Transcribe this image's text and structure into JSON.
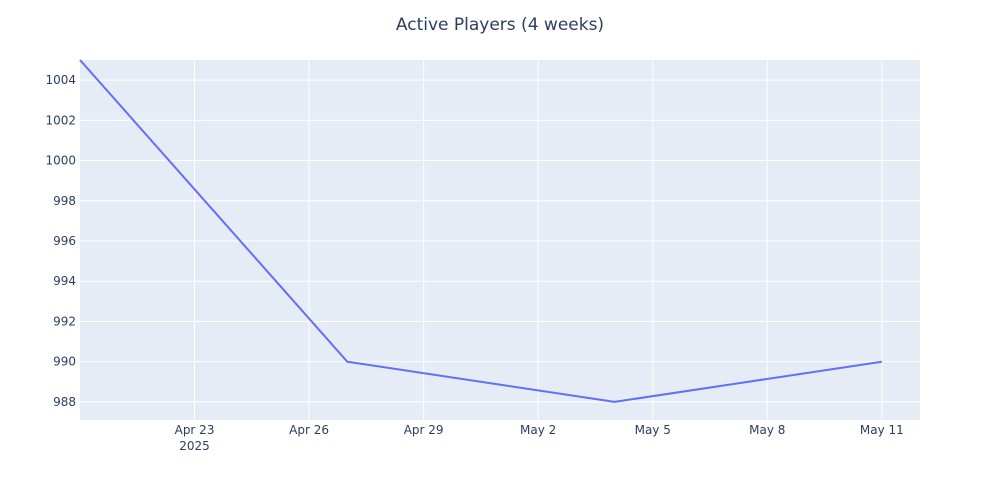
{
  "chart_data": {
    "type": "line",
    "title": "Active Players (4 weeks)",
    "xlabel": "",
    "ylabel": "",
    "x_axis": {
      "type": "date",
      "range": [
        "2025-04-20",
        "2025-05-12"
      ],
      "ticks": [
        {
          "date": "2025-04-23",
          "label": "Apr 23",
          "sublabel": "2025"
        },
        {
          "date": "2025-04-26",
          "label": "Apr 26",
          "sublabel": ""
        },
        {
          "date": "2025-04-29",
          "label": "Apr 29",
          "sublabel": ""
        },
        {
          "date": "2025-05-02",
          "label": "May 2",
          "sublabel": ""
        },
        {
          "date": "2025-05-05",
          "label": "May 5",
          "sublabel": ""
        },
        {
          "date": "2025-05-08",
          "label": "May 8",
          "sublabel": ""
        },
        {
          "date": "2025-05-11",
          "label": "May 11",
          "sublabel": ""
        }
      ]
    },
    "y_axis": {
      "range": [
        987.1,
        1005
      ],
      "ticks": [
        988,
        990,
        992,
        994,
        996,
        998,
        1000,
        1002,
        1004
      ]
    },
    "grid": true,
    "legend": "none",
    "series": [
      {
        "color": "#636efa",
        "x": [
          "2025-04-20",
          "2025-04-27",
          "2025-05-04",
          "2025-05-11"
        ],
        "y": [
          1005,
          990,
          988,
          990
        ]
      }
    ],
    "colors": {
      "plot_background": "#e5ecf6",
      "grid": "#ffffff",
      "text": "#2a3f5f",
      "line": "#636efa"
    }
  }
}
